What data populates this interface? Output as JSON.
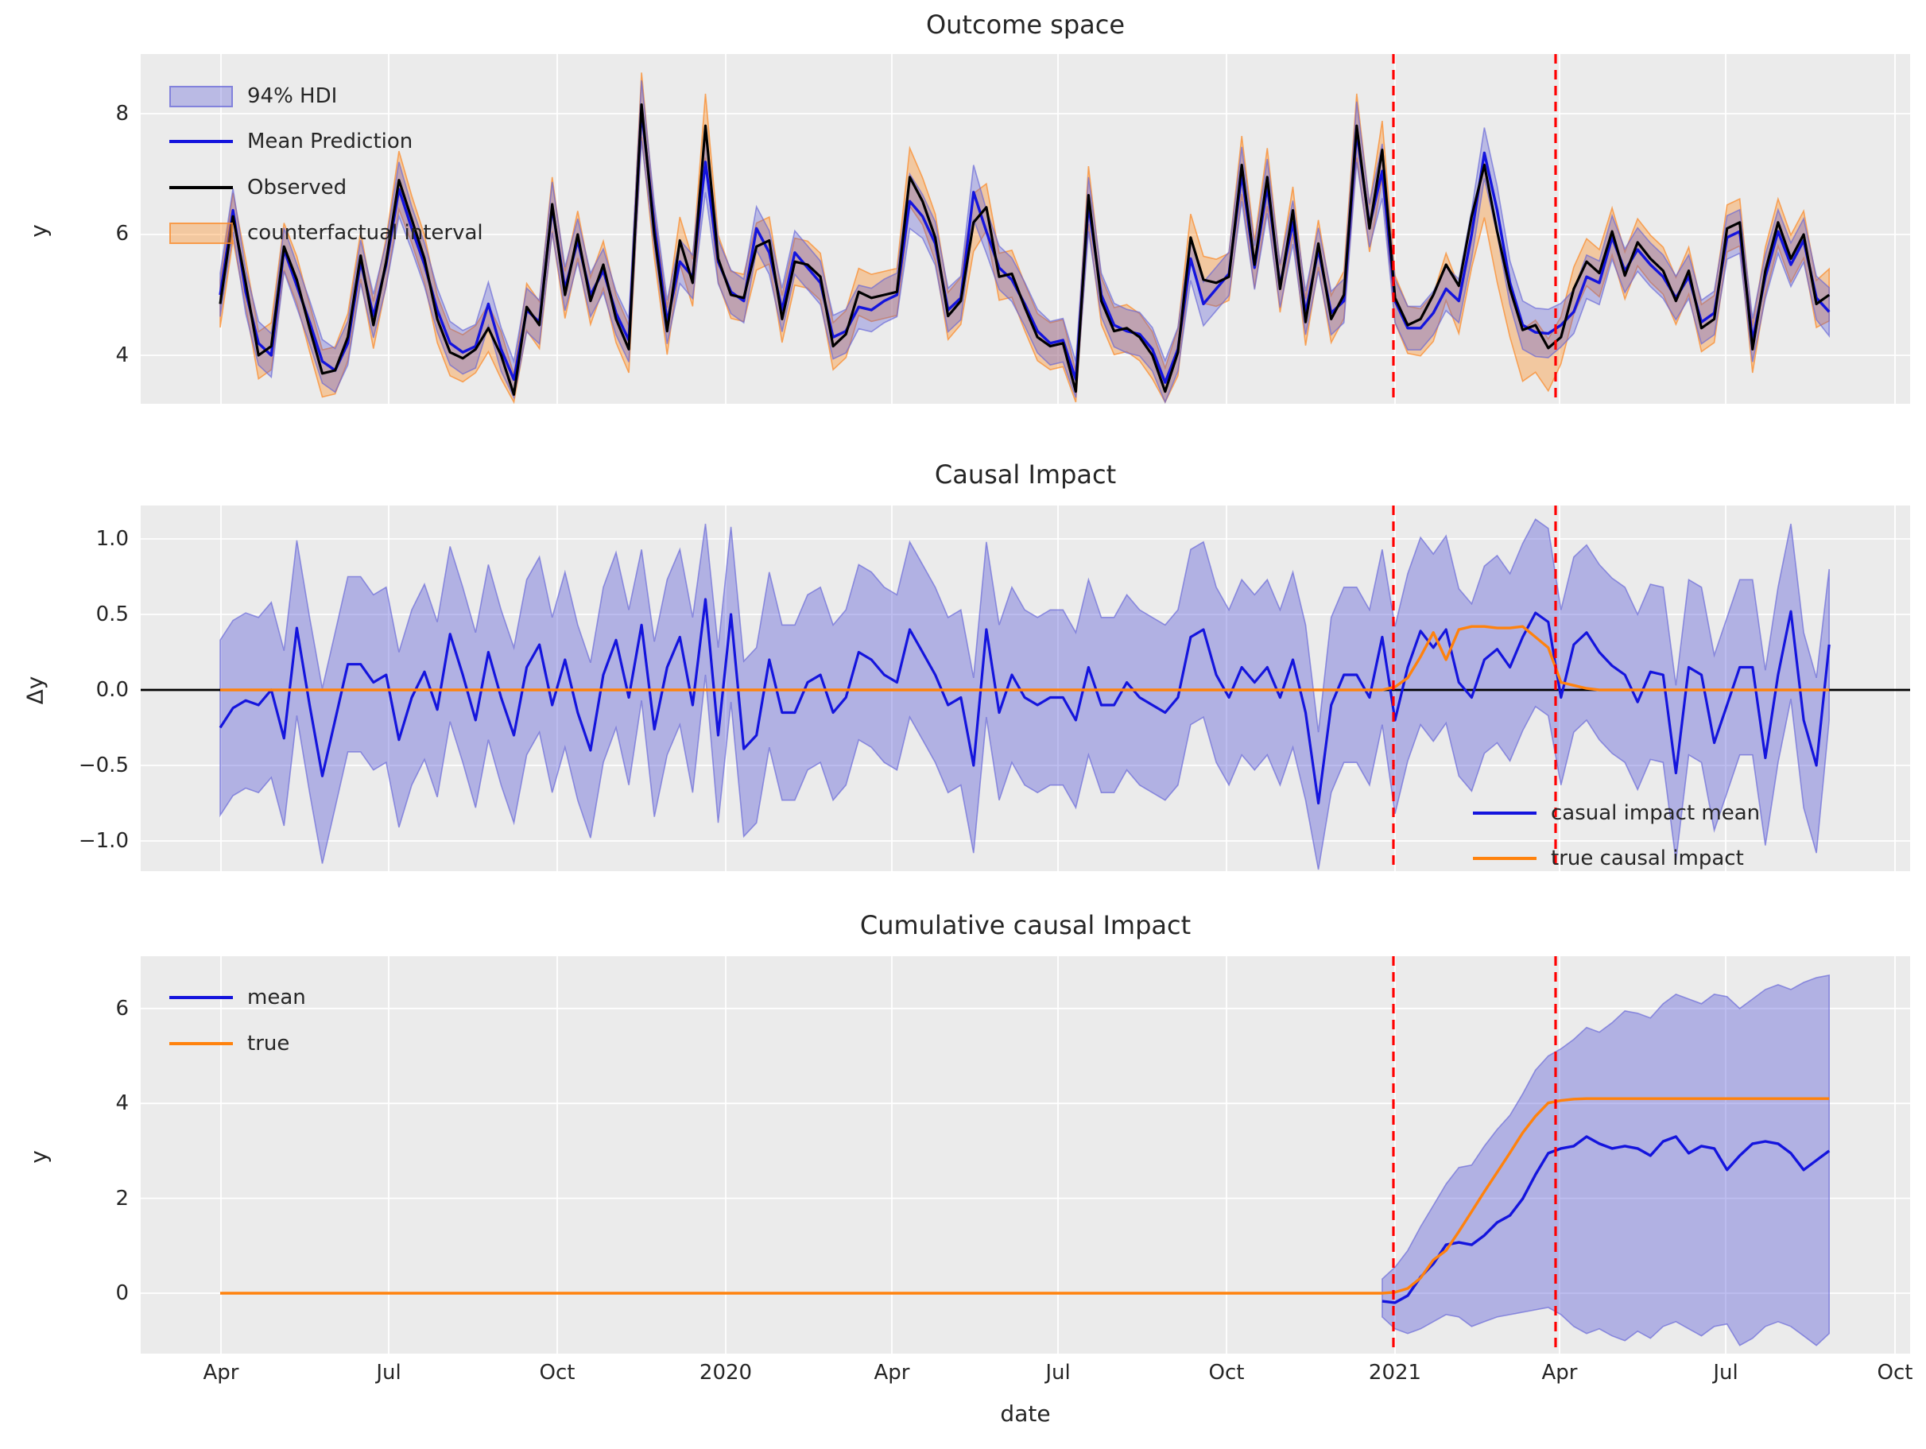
{
  "figure": {
    "xlabel": "date",
    "x_tick_labels": [
      "Apr",
      "Jul",
      "Oct",
      "2020",
      "Apr",
      "Jul",
      "Oct",
      "2021",
      "Apr",
      "Jul",
      "Oct"
    ],
    "intervention": {
      "start_tick": "2021",
      "end_tick": "Apr"
    },
    "colors": {
      "background": "#ffffff",
      "axes_bg": "#ebebeb",
      "grid": "#ffffff",
      "text": "#262626",
      "observed": "#000000",
      "prediction_blue": "#1414dd",
      "impact_orange": "#ff820d",
      "hdi_fill": "rgba(85,85,215,0.32)",
      "hdi_fill_strong": "rgba(85,85,215,0.38)",
      "hdi_edge": "rgba(100,100,215,0.65)",
      "cf_fill": "rgba(255,145,40,0.38)",
      "cf_edge": "rgba(250,140,45,0.75)",
      "vline_red": "#ff0000"
    }
  },
  "chart_data": [
    {
      "id": "outcome_space",
      "type": "line",
      "title": "Outcome space",
      "ylabel": "y",
      "yticks": [
        {
          "label": "8",
          "value": 8
        },
        {
          "label": "6",
          "value": 6
        },
        {
          "label": "4",
          "value": 4
        }
      ],
      "ylim": [
        3.2,
        8.99
      ],
      "legend": [
        {
          "label": "94% HDI"
        },
        {
          "label": "Mean Prediction"
        },
        {
          "label": "Observed"
        },
        {
          "label": "counterfactual interval"
        }
      ],
      "x_weekly_points": 127,
      "series": {
        "observed": [
          4.85,
          6.3,
          5.2,
          4.0,
          4.15,
          5.8,
          5.25,
          4.45,
          3.7,
          3.75,
          4.3,
          5.65,
          4.5,
          5.55,
          6.9,
          6.25,
          5.6,
          4.6,
          4.05,
          3.95,
          4.1,
          4.45,
          4.0,
          3.35,
          4.8,
          4.5,
          6.5,
          5.0,
          6.0,
          4.9,
          5.5,
          4.6,
          4.1,
          8.15,
          6.0,
          4.4,
          5.9,
          5.2,
          7.8,
          5.6,
          5.0,
          4.95,
          5.8,
          5.9,
          4.6,
          5.55,
          5.5,
          5.3,
          4.15,
          4.35,
          5.05,
          4.95,
          5.0,
          5.05,
          6.95,
          6.55,
          5.95,
          4.65,
          4.9,
          6.2,
          6.45,
          5.3,
          5.35,
          4.8,
          4.3,
          4.15,
          4.2,
          3.4,
          6.65,
          4.9,
          4.4,
          4.45,
          4.3,
          4.0,
          3.4,
          4.05,
          5.95,
          5.25,
          5.2,
          5.3,
          7.15,
          5.5,
          6.95,
          5.1,
          6.4,
          4.55,
          5.85,
          4.6,
          5.0,
          7.8,
          6.1,
          7.4,
          4.95,
          4.5,
          4.6,
          5.0,
          5.5,
          5.15,
          6.3,
          7.15,
          6.05,
          5.1,
          4.42,
          4.5,
          4.12,
          4.3,
          5.1,
          5.55,
          5.36,
          6.05,
          5.32,
          5.87,
          5.6,
          5.4,
          4.9,
          5.4,
          4.45,
          4.6,
          6.1,
          6.2,
          4.1,
          5.4,
          6.2,
          5.6,
          6.0,
          4.85,
          5.0
        ],
        "mean_prediction": [
          5.0,
          6.4,
          5.05,
          4.2,
          4.0,
          5.75,
          5.15,
          4.55,
          3.9,
          3.75,
          4.2,
          5.55,
          4.65,
          5.5,
          6.75,
          6.1,
          5.5,
          4.75,
          4.2,
          4.05,
          4.15,
          4.85,
          4.1,
          3.6,
          4.75,
          4.55,
          6.45,
          5.1,
          5.9,
          5.0,
          5.4,
          4.7,
          4.25,
          8.05,
          6.15,
          4.55,
          5.55,
          5.3,
          7.2,
          5.55,
          5.05,
          4.9,
          6.1,
          5.7,
          4.75,
          5.7,
          5.45,
          5.2,
          4.3,
          4.4,
          4.8,
          4.75,
          4.9,
          5.0,
          6.55,
          6.3,
          5.85,
          4.75,
          4.95,
          6.7,
          6.05,
          5.45,
          5.25,
          4.85,
          4.4,
          4.2,
          4.25,
          3.6,
          6.5,
          5.0,
          4.5,
          4.4,
          4.35,
          4.1,
          3.55,
          4.1,
          5.6,
          4.85,
          5.1,
          5.35,
          7.0,
          5.45,
          6.8,
          5.15,
          6.2,
          4.7,
          5.75,
          4.7,
          4.9,
          7.7,
          6.15,
          7.05,
          4.9,
          4.45,
          4.45,
          4.7,
          5.1,
          4.9,
          6.0,
          7.35,
          6.4,
          5.2,
          4.5,
          4.38,
          4.36,
          4.5,
          4.72,
          5.3,
          5.2,
          5.95,
          5.4,
          5.75,
          5.5,
          5.3,
          4.95,
          5.3,
          4.55,
          4.7,
          5.95,
          6.05,
          4.25,
          5.3,
          6.05,
          5.5,
          5.9,
          4.95,
          4.72
        ]
      },
      "hdi_halfwidth_default": 0.36,
      "hdi_halfwidth_overrides": {
        "14": 0.45,
        "23": 0.3,
        "26": 0.42,
        "33": 0.5,
        "38": 0.5,
        "54": 0.45,
        "59": 0.45,
        "67": 0.3,
        "68": 0.45,
        "80": 0.45,
        "82": 0.45,
        "89": 0.5,
        "91": 0.45,
        "98": 0.4,
        "99": 0.42,
        "100": 0.4,
        "102": 0.4,
        "103": 0.4,
        "104": 0.4,
        "126": 0.4
      }
    },
    {
      "id": "causal_impact",
      "type": "line",
      "title": "Causal Impact",
      "ylabel": "Δy",
      "yticks": [
        {
          "label": "1.0",
          "value": 1.0
        },
        {
          "label": "0.5",
          "value": 0.5
        },
        {
          "label": "0.0",
          "value": 0.0
        },
        {
          "label": "−0.5",
          "value": -0.5
        },
        {
          "label": "−1.0",
          "value": -1.0
        }
      ],
      "ylim": [
        -1.2,
        1.22
      ],
      "legend": [
        {
          "label": "casual impact mean"
        },
        {
          "label": "true causal impact"
        }
      ],
      "series": {
        "impact_mean": [
          -0.25,
          -0.12,
          -0.07,
          -0.1,
          0.0,
          -0.32,
          0.41,
          -0.1,
          -0.57,
          -0.2,
          0.17,
          0.17,
          0.05,
          0.1,
          -0.33,
          -0.05,
          0.12,
          -0.13,
          0.37,
          0.1,
          -0.2,
          0.25,
          -0.05,
          -0.3,
          0.15,
          0.3,
          -0.1,
          0.2,
          -0.15,
          -0.4,
          0.1,
          0.33,
          -0.05,
          0.43,
          -0.26,
          0.15,
          0.35,
          -0.1,
          0.6,
          -0.3,
          0.5,
          -0.39,
          -0.3,
          0.2,
          -0.15,
          -0.15,
          0.05,
          0.1,
          -0.15,
          -0.05,
          0.25,
          0.2,
          0.1,
          0.05,
          0.4,
          0.25,
          0.1,
          -0.1,
          -0.05,
          -0.5,
          0.4,
          -0.15,
          0.1,
          -0.05,
          -0.1,
          -0.05,
          -0.05,
          -0.2,
          0.15,
          -0.1,
          -0.1,
          0.05,
          -0.05,
          -0.1,
          -0.15,
          -0.05,
          0.35,
          0.4,
          0.1,
          -0.05,
          0.15,
          0.05,
          0.15,
          -0.05,
          0.2,
          -0.15,
          -0.75,
          -0.1,
          0.1,
          0.1,
          -0.05,
          0.35,
          -0.2,
          0.15,
          0.39,
          0.28,
          0.4,
          0.05,
          -0.05,
          0.2,
          0.27,
          0.15,
          0.35,
          0.51,
          0.45,
          -0.05,
          0.3,
          0.38,
          0.25,
          0.16,
          0.1,
          -0.08,
          0.12,
          0.1,
          -0.55,
          0.15,
          0.1,
          -0.35,
          -0.1,
          0.15,
          0.15,
          -0.45,
          0.1,
          0.52,
          -0.2,
          -0.5,
          0.3
        ],
        "true_impact": [
          0,
          0,
          0,
          0,
          0,
          0,
          0,
          0,
          0,
          0,
          0,
          0,
          0,
          0,
          0,
          0,
          0,
          0,
          0,
          0,
          0,
          0,
          0,
          0,
          0,
          0,
          0,
          0,
          0,
          0,
          0,
          0,
          0,
          0,
          0,
          0,
          0,
          0,
          0,
          0,
          0,
          0,
          0,
          0,
          0,
          0,
          0,
          0,
          0,
          0,
          0,
          0,
          0,
          0,
          0,
          0,
          0,
          0,
          0,
          0,
          0,
          0,
          0,
          0,
          0,
          0,
          0,
          0,
          0,
          0,
          0,
          0,
          0,
          0,
          0,
          0,
          0,
          0,
          0,
          0,
          0,
          0,
          0,
          0,
          0,
          0,
          0,
          0,
          0,
          0,
          0,
          0,
          0.02,
          0.08,
          0.22,
          0.38,
          0.2,
          0.4,
          0.42,
          0.42,
          0.41,
          0.41,
          0.42,
          0.35,
          0.28,
          0.05,
          0.03,
          0.01,
          0,
          0,
          0,
          0,
          0,
          0,
          0,
          0,
          0,
          0,
          0,
          0,
          0,
          0,
          0,
          0,
          0,
          0,
          0
        ]
      },
      "hdi_halfwidth_default": 0.58,
      "hdi_halfwidth_overrides": {
        "33": 0.5,
        "38": 0.5,
        "86": 0.47,
        "92": 0.62,
        "93": 0.62,
        "94": 0.62,
        "95": 0.62,
        "96": 0.62,
        "97": 0.62,
        "98": 0.62,
        "99": 0.62,
        "100": 0.62,
        "101": 0.62,
        "102": 0.62,
        "103": 0.62,
        "104": 0.62,
        "126": 0.5
      }
    },
    {
      "id": "cumulative_causal_impact",
      "type": "line",
      "title": "Cumulative causal Impact",
      "ylabel": "y",
      "yticks": [
        {
          "label": "6",
          "value": 6
        },
        {
          "label": "4",
          "value": 4
        },
        {
          "label": "2",
          "value": 2
        },
        {
          "label": "0",
          "value": 0
        }
      ],
      "ylim": [
        -1.27,
        7.1
      ],
      "legend": [
        {
          "label": "mean"
        },
        {
          "label": "true"
        }
      ],
      "start_index": 91,
      "series": {
        "mean": [
          -0.17,
          -0.2,
          -0.05,
          0.34,
          0.62,
          1.02,
          1.07,
          1.02,
          1.22,
          1.49,
          1.64,
          1.99,
          2.5,
          2.95,
          3.05,
          3.1,
          3.3,
          3.15,
          3.05,
          3.1,
          3.05,
          2.9,
          3.2,
          3.3,
          2.95,
          3.1,
          3.05,
          2.6,
          2.9,
          3.15,
          3.2,
          3.15,
          2.95,
          2.6,
          2.8,
          3.0
        ],
        "true": [
          0,
          0.02,
          0.1,
          0.32,
          0.7,
          0.9,
          1.3,
          1.72,
          2.14,
          2.55,
          2.96,
          3.38,
          3.73,
          4.01,
          4.06,
          4.09,
          4.1,
          4.1,
          4.1,
          4.1,
          4.1,
          4.1,
          4.1,
          4.1,
          4.1,
          4.1,
          4.1,
          4.1,
          4.1,
          4.1,
          4.1,
          4.1,
          4.1,
          4.1,
          4.1,
          4.1
        ],
        "hdi_lo": [
          -0.5,
          -0.75,
          -0.85,
          -0.75,
          -0.6,
          -0.45,
          -0.5,
          -0.7,
          -0.6,
          -0.5,
          -0.45,
          -0.4,
          -0.35,
          -0.3,
          -0.45,
          -0.7,
          -0.85,
          -0.75,
          -0.9,
          -1.0,
          -0.8,
          -0.95,
          -0.7,
          -0.6,
          -0.75,
          -0.9,
          -0.7,
          -0.65,
          -1.1,
          -0.95,
          -0.7,
          -0.6,
          -0.7,
          -0.9,
          -1.1,
          -0.85
        ],
        "hdi_hi": [
          0.3,
          0.55,
          0.9,
          1.4,
          1.85,
          2.3,
          2.65,
          2.7,
          3.1,
          3.45,
          3.75,
          4.2,
          4.7,
          5.0,
          5.15,
          5.35,
          5.6,
          5.5,
          5.7,
          5.95,
          5.9,
          5.8,
          6.1,
          6.3,
          6.2,
          6.1,
          6.3,
          6.25,
          6.0,
          6.2,
          6.4,
          6.5,
          6.4,
          6.55,
          6.65,
          6.7
        ]
      }
    }
  ]
}
